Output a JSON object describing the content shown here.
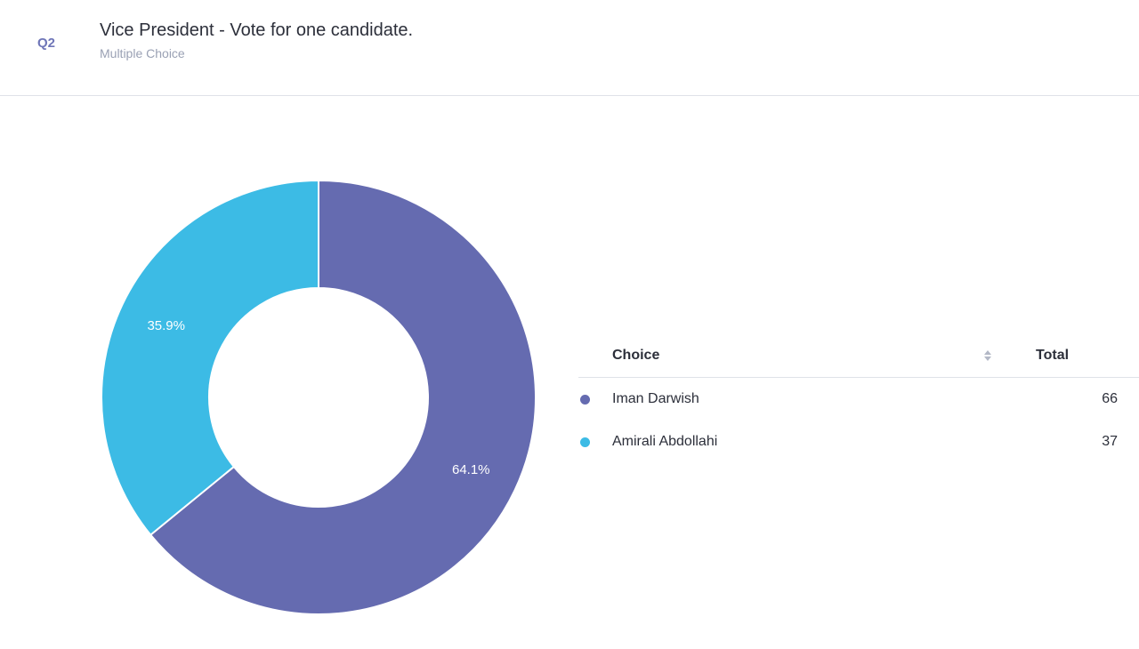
{
  "question": {
    "number": "Q2",
    "title": "Vice President - Vote for one candidate.",
    "type": "Multiple Choice"
  },
  "table": {
    "header_choice": "Choice",
    "header_total": "Total",
    "rows": [
      {
        "label": "Iman Darwish",
        "total": "66",
        "color": "#656bb0"
      },
      {
        "label": "Amirali Abdollahi",
        "total": "37",
        "color": "#3cbbe5"
      }
    ]
  },
  "chart_data": {
    "type": "pie",
    "donut": true,
    "categories": [
      "Iman Darwish",
      "Amirali Abdollahi"
    ],
    "values": [
      66,
      37
    ],
    "percent_labels": [
      "64.1%",
      "35.9%"
    ],
    "colors": [
      "#656bb0",
      "#3cbbe5"
    ]
  }
}
